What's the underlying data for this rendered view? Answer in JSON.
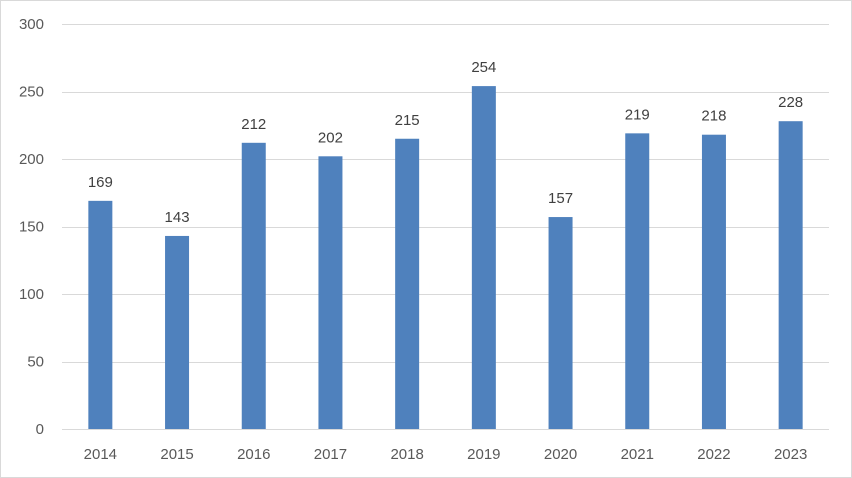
{
  "chart_data": {
    "type": "bar",
    "title": "",
    "xlabel": "",
    "ylabel": "",
    "categories": [
      "2014",
      "2015",
      "2016",
      "2017",
      "2018",
      "2019",
      "2020",
      "2021",
      "2022",
      "2023"
    ],
    "values": [
      169,
      143,
      212,
      202,
      215,
      254,
      157,
      219,
      218,
      228
    ],
    "ylim": [
      0,
      300
    ],
    "yticks": [
      0,
      50,
      100,
      150,
      200,
      250,
      300
    ],
    "grid": true,
    "legend": "none",
    "data_labels": true,
    "colors": {
      "bar": "#4f81bd",
      "grid": "#d9d9d9",
      "axis": "#d9d9d9",
      "tick_text": "#595959",
      "label_text": "#404040"
    }
  }
}
